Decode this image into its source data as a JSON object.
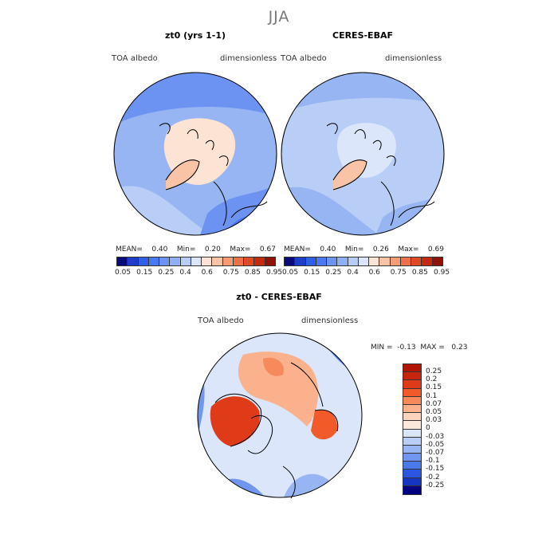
{
  "figure": {
    "season": "JJA",
    "map_type": "north polar stereographic"
  },
  "panels": [
    {
      "title": "zt0 (yrs 1-1)",
      "left_label": "TOA albedo",
      "right_label": "dimensionless",
      "stats": {
        "mean_label": "MEAN=",
        "mean": "0.40",
        "min_label": "Min=",
        "min": "0.20",
        "max_label": "Max=",
        "max": "0.67"
      }
    },
    {
      "title": "CERES-EBAF",
      "left_label": "TOA albedo",
      "right_label": "dimensionless",
      "stats": {
        "mean_label": "MEAN=",
        "mean": "0.40",
        "min_label": "Min=",
        "min": "0.26",
        "max_label": "Max=",
        "max": "0.69"
      }
    }
  ],
  "colorbar_top": {
    "colors": [
      "#0a0a7a",
      "#1f3cc8",
      "#2f5fe6",
      "#4a78ee",
      "#6d93f2",
      "#8fb0f5",
      "#b7cdf8",
      "#dbe6fb",
      "#fde3d3",
      "#f9c3a5",
      "#f39c76",
      "#ec7048",
      "#df4a24",
      "#c52a10",
      "#931008"
    ],
    "ticks": [
      "0.05",
      "0.15",
      "0.25",
      "0.4",
      "0.6",
      "0.75",
      "0.85",
      "0.95"
    ]
  },
  "diff_panel": {
    "title": "zt0 - CERES-EBAF",
    "left_label": "TOA albedo",
    "right_label": "dimensionless",
    "stats": {
      "min_label": "MIN =",
      "min": "-0.13",
      "max_label": "MAX =",
      "max": "0.23"
    }
  },
  "colorbar_diff": {
    "colors": [
      "#b01505",
      "#c8250f",
      "#e03b18",
      "#f25a2a",
      "#f78a5a",
      "#fab18c",
      "#fcd3bd",
      "#fbe9dc",
      "#dbe6fb",
      "#b9cef7",
      "#97b5f3",
      "#7196ef",
      "#4c79ea",
      "#2d56e0",
      "#1636c2",
      "#000080"
    ],
    "ticks": [
      "0.25",
      "0.2",
      "0.15",
      "0.1",
      "0.07",
      "0.05",
      "0.03",
      "0",
      "-0.03",
      "-0.05",
      "-0.07",
      "-0.1",
      "-0.15",
      "-0.2",
      "-0.25"
    ]
  },
  "map_colors": {
    "ocean_low": "#b9cef7",
    "ocean_mid": "#97b5f3",
    "ocean_high": "#6d93f2",
    "ice": "#fde3d3",
    "greenland": "#f9c3a5",
    "pos_strong": "#e03b18",
    "pos_mid": "#f78a5a",
    "pos_weak": "#fcd3bd",
    "neg_mid": "#7196ef",
    "neg_strong": "#2d56e0"
  }
}
